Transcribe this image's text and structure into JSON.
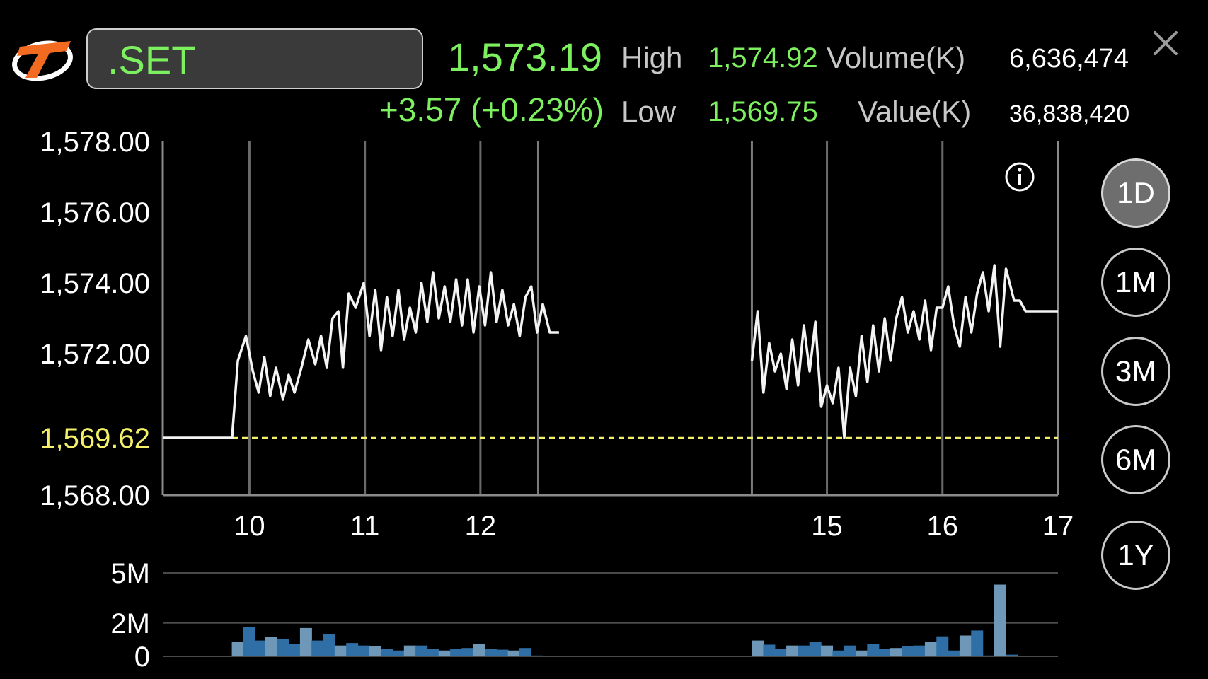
{
  "header": {
    "symbol": ".SET",
    "last_price": "1,573.19",
    "change": "+3.57 (+0.23%)",
    "high_label": "High",
    "high_value": "1,574.92",
    "low_label": "Low",
    "low_value": "1,569.75",
    "volume_label": "Volume(K)",
    "volume_value": "6,636,474",
    "value_label": "Value(K)",
    "value_value": "36,838,420"
  },
  "periods": [
    {
      "label": "1D",
      "active": true
    },
    {
      "label": "1M",
      "active": false
    },
    {
      "label": "3M",
      "active": false
    },
    {
      "label": "6M",
      "active": false
    },
    {
      "label": "1Y",
      "active": false
    }
  ],
  "icons": {
    "logo": "brand-logo",
    "info": "info-icon",
    "close": "close-icon"
  },
  "colors": {
    "accent_green": "#7df060",
    "reference_yellow": "#f4f06a",
    "volume_bar": "#2f6fa6",
    "volume_bar_light": "#6f98b8"
  },
  "chart_data": [
    {
      "type": "line",
      "ylim": [
        1568,
        1578
      ],
      "y_ticks": [
        "1,578.00",
        "1,576.00",
        "1,574.00",
        "1,572.00",
        "1,568.00"
      ],
      "y_tick_values": [
        1578,
        1576,
        1574,
        1572,
        1568
      ],
      "reference_line": {
        "value": 1569.62,
        "label": "1,569.62"
      },
      "x_ticks": [
        "10",
        "11",
        "12",
        "15",
        "16",
        "17"
      ],
      "x_tick_positions": [
        10,
        11,
        12,
        15,
        16,
        17
      ],
      "x_range": [
        9.25,
        17
      ],
      "session_breaks": [
        12.5,
        14.35
      ],
      "segments": [
        [
          [
            9.25,
            1569.62
          ],
          [
            9.85,
            1569.62
          ],
          [
            9.9,
            1571.8
          ],
          [
            9.97,
            1572.5
          ],
          [
            10.03,
            1571.5
          ],
          [
            10.08,
            1570.9
          ],
          [
            10.13,
            1571.9
          ],
          [
            10.18,
            1570.8
          ],
          [
            10.23,
            1571.6
          ],
          [
            10.29,
            1570.7
          ],
          [
            10.34,
            1571.4
          ],
          [
            10.39,
            1570.9
          ],
          [
            10.45,
            1571.6
          ],
          [
            10.51,
            1572.4
          ],
          [
            10.57,
            1571.7
          ],
          [
            10.62,
            1572.5
          ],
          [
            10.67,
            1571.6
          ],
          [
            10.72,
            1573.0
          ],
          [
            10.77,
            1573.2
          ],
          [
            10.81,
            1571.6
          ],
          [
            10.86,
            1573.7
          ],
          [
            10.92,
            1573.3
          ],
          [
            10.99,
            1574.0
          ],
          [
            11.04,
            1572.5
          ],
          [
            11.09,
            1573.8
          ],
          [
            11.14,
            1572.1
          ],
          [
            11.19,
            1573.6
          ],
          [
            11.24,
            1572.5
          ],
          [
            11.29,
            1573.8
          ],
          [
            11.34,
            1572.4
          ],
          [
            11.39,
            1573.3
          ],
          [
            11.44,
            1572.6
          ],
          [
            11.49,
            1574.0
          ],
          [
            11.54,
            1572.9
          ],
          [
            11.59,
            1574.3
          ],
          [
            11.64,
            1573.0
          ],
          [
            11.69,
            1573.9
          ],
          [
            11.74,
            1572.9
          ],
          [
            11.79,
            1574.1
          ],
          [
            11.84,
            1572.8
          ],
          [
            11.89,
            1574.1
          ],
          [
            11.94,
            1572.6
          ],
          [
            11.99,
            1573.9
          ],
          [
            12.04,
            1572.8
          ],
          [
            12.09,
            1574.3
          ],
          [
            12.14,
            1572.9
          ],
          [
            12.19,
            1573.8
          ],
          [
            12.24,
            1572.8
          ],
          [
            12.29,
            1573.4
          ],
          [
            12.34,
            1572.5
          ],
          [
            12.39,
            1573.6
          ],
          [
            12.44,
            1573.9
          ],
          [
            12.49,
            1572.6
          ],
          [
            12.54,
            1573.4
          ],
          [
            12.6,
            1572.6
          ],
          [
            12.68,
            1572.6
          ]
        ],
        [
          [
            14.35,
            1571.8
          ],
          [
            14.4,
            1573.2
          ],
          [
            14.45,
            1570.9
          ],
          [
            14.5,
            1572.3
          ],
          [
            14.55,
            1571.5
          ],
          [
            14.6,
            1572.0
          ],
          [
            14.65,
            1571.0
          ],
          [
            14.7,
            1572.4
          ],
          [
            14.75,
            1571.1
          ],
          [
            14.8,
            1572.8
          ],
          [
            14.85,
            1571.5
          ],
          [
            14.9,
            1572.9
          ],
          [
            14.95,
            1570.5
          ],
          [
            15.0,
            1571.1
          ],
          [
            15.05,
            1570.6
          ],
          [
            15.1,
            1571.6
          ],
          [
            15.15,
            1569.62
          ],
          [
            15.2,
            1571.6
          ],
          [
            15.25,
            1570.8
          ],
          [
            15.3,
            1572.5
          ],
          [
            15.35,
            1571.2
          ],
          [
            15.4,
            1572.8
          ],
          [
            15.45,
            1571.5
          ],
          [
            15.5,
            1573.0
          ],
          [
            15.55,
            1571.8
          ],
          [
            15.6,
            1573.0
          ],
          [
            15.65,
            1573.6
          ],
          [
            15.7,
            1572.6
          ],
          [
            15.75,
            1573.2
          ],
          [
            15.8,
            1572.4
          ],
          [
            15.85,
            1573.5
          ],
          [
            15.9,
            1572.1
          ],
          [
            15.95,
            1573.3
          ],
          [
            16.0,
            1573.3
          ],
          [
            16.05,
            1573.9
          ],
          [
            16.1,
            1572.8
          ],
          [
            16.15,
            1572.2
          ],
          [
            16.2,
            1573.6
          ],
          [
            16.25,
            1572.6
          ],
          [
            16.3,
            1573.7
          ],
          [
            16.35,
            1574.3
          ],
          [
            16.4,
            1573.2
          ],
          [
            16.45,
            1574.5
          ],
          [
            16.5,
            1572.2
          ],
          [
            16.55,
            1574.4
          ],
          [
            16.62,
            1573.5
          ],
          [
            16.67,
            1573.5
          ],
          [
            16.72,
            1573.2
          ],
          [
            17.0,
            1573.2
          ]
        ]
      ]
    },
    {
      "type": "bar",
      "y_ticks": [
        "5M",
        "2M",
        "0"
      ],
      "y_tick_values": [
        5,
        2,
        0
      ],
      "ylim": [
        0,
        5
      ],
      "x_range": [
        9.25,
        17
      ],
      "bars": [
        [
          9.9,
          0.85
        ],
        [
          10.0,
          1.75
        ],
        [
          10.09,
          0.95
        ],
        [
          10.19,
          1.15
        ],
        [
          10.29,
          1.05
        ],
        [
          10.39,
          0.75
        ],
        [
          10.49,
          1.7
        ],
        [
          10.59,
          0.95
        ],
        [
          10.69,
          1.35
        ],
        [
          10.79,
          0.65
        ],
        [
          10.89,
          0.8
        ],
        [
          10.99,
          0.65
        ],
        [
          11.09,
          0.6
        ],
        [
          11.19,
          0.45
        ],
        [
          11.29,
          0.35
        ],
        [
          11.39,
          0.65
        ],
        [
          11.49,
          0.65
        ],
        [
          11.59,
          0.45
        ],
        [
          11.69,
          0.35
        ],
        [
          11.79,
          0.45
        ],
        [
          11.89,
          0.5
        ],
        [
          11.99,
          0.75
        ],
        [
          12.09,
          0.45
        ],
        [
          12.19,
          0.4
        ],
        [
          12.29,
          0.35
        ],
        [
          12.39,
          0.5
        ],
        [
          12.49,
          0.05
        ],
        [
          14.4,
          0.95
        ],
        [
          14.5,
          0.7
        ],
        [
          14.6,
          0.45
        ],
        [
          14.7,
          0.65
        ],
        [
          14.8,
          0.65
        ],
        [
          14.9,
          0.85
        ],
        [
          15.0,
          0.65
        ],
        [
          15.1,
          0.35
        ],
        [
          15.2,
          0.65
        ],
        [
          15.3,
          0.35
        ],
        [
          15.4,
          0.75
        ],
        [
          15.5,
          0.45
        ],
        [
          15.6,
          0.5
        ],
        [
          15.7,
          0.6
        ],
        [
          15.8,
          0.65
        ],
        [
          15.9,
          0.85
        ],
        [
          16.0,
          1.2
        ],
        [
          16.1,
          0.35
        ],
        [
          16.2,
          1.25
        ],
        [
          16.3,
          1.55
        ],
        [
          16.4,
          0.05
        ],
        [
          16.5,
          4.3
        ],
        [
          16.6,
          0.1
        ]
      ]
    }
  ]
}
